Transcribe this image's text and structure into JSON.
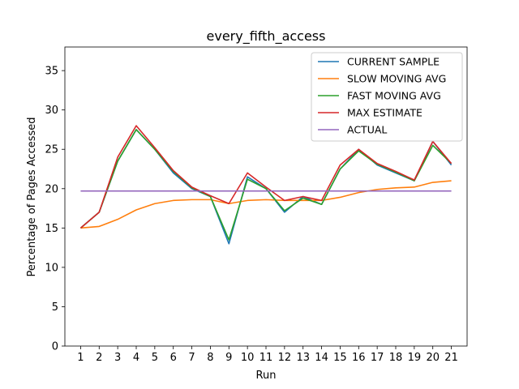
{
  "chart_data": {
    "type": "line",
    "title": "every_fifth_access",
    "xlabel": "Run",
    "ylabel": "Percentage of Pages Accessed",
    "x": [
      1,
      2,
      3,
      4,
      5,
      6,
      7,
      8,
      9,
      10,
      11,
      12,
      13,
      14,
      15,
      16,
      17,
      18,
      19,
      20,
      21
    ],
    "xlim": [
      0.15,
      21.85
    ],
    "ylim": [
      0,
      38
    ],
    "yticks": [
      0,
      5,
      10,
      15,
      20,
      25,
      30,
      35
    ],
    "grid": false,
    "legend_position": "top-right",
    "series": [
      {
        "name": "CURRENT SAMPLE",
        "color": "#1f77b4",
        "values": [
          15.0,
          17.0,
          23.5,
          27.5,
          25.0,
          22.0,
          20.0,
          19.0,
          13.0,
          21.5,
          20.0,
          17.0,
          19.0,
          18.0,
          22.5,
          25.0,
          23.0,
          22.0,
          21.0,
          26.0,
          23.0
        ]
      },
      {
        "name": "SLOW MOVING AVG",
        "color": "#ff7f0e",
        "values": [
          15.0,
          15.2,
          16.1,
          17.3,
          18.1,
          18.5,
          18.6,
          18.6,
          18.1,
          18.5,
          18.6,
          18.5,
          18.5,
          18.5,
          18.9,
          19.5,
          19.9,
          20.1,
          20.2,
          20.8,
          21.0
        ]
      },
      {
        "name": "FAST MOVING AVG",
        "color": "#2ca02c",
        "values": [
          15.0,
          17.0,
          23.5,
          27.5,
          25.0,
          22.2,
          20.1,
          19.0,
          13.5,
          21.2,
          20.0,
          17.2,
          18.8,
          18.0,
          22.5,
          24.8,
          23.1,
          22.1,
          21.0,
          25.5,
          23.2
        ]
      },
      {
        "name": "MAX ESTIMATE",
        "color": "#d62728",
        "values": [
          15.0,
          17.0,
          24.0,
          28.0,
          25.2,
          22.3,
          20.2,
          19.1,
          18.1,
          22.0,
          20.2,
          18.5,
          19.0,
          18.5,
          23.0,
          25.0,
          23.2,
          22.2,
          21.1,
          26.0,
          23.2
        ]
      },
      {
        "name": "ACTUAL",
        "color": "#9467bd",
        "values": [
          19.7,
          19.7,
          19.7,
          19.7,
          19.7,
          19.7,
          19.7,
          19.7,
          19.7,
          19.7,
          19.7,
          19.7,
          19.7,
          19.7,
          19.7,
          19.7,
          19.7,
          19.7,
          19.7,
          19.7,
          19.7
        ]
      }
    ]
  }
}
